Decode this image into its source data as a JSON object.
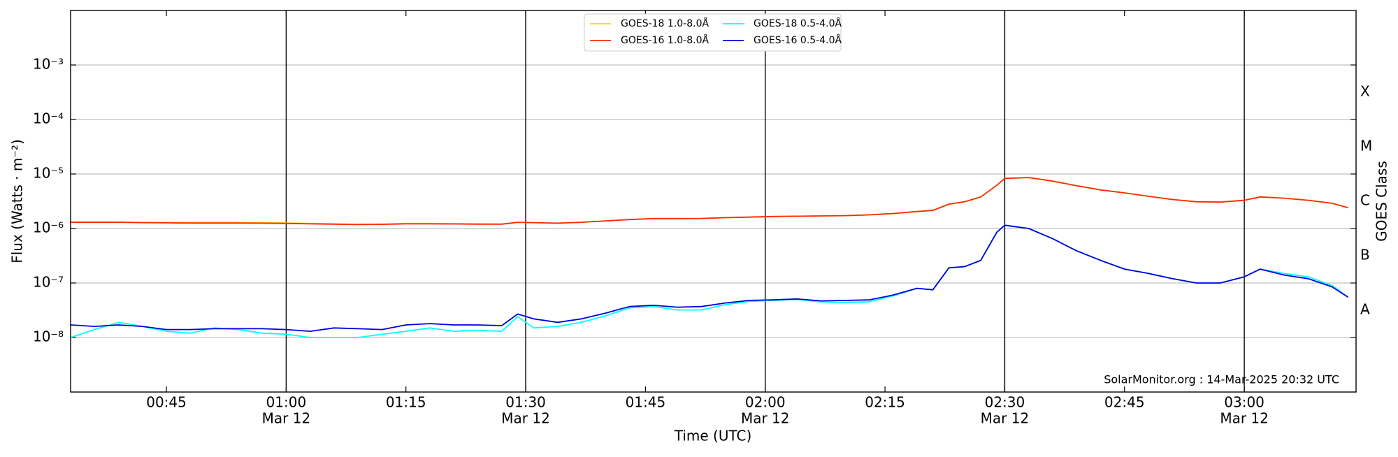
{
  "chart_data": {
    "type": "line",
    "xlabel": "Time (UTC)",
    "ylabel": "Flux (Watts · m⁻²)",
    "y2label": "GOES Class",
    "annotation": "SolarMonitor.org : 14-Mar-2025 20:32 UTC",
    "yscale": "log",
    "ylim": [
      1e-09,
      0.01
    ],
    "yticks": [
      {
        "value": 1e-08,
        "label": "10⁻⁸"
      },
      {
        "value": 1e-07,
        "label": "10⁻⁷"
      },
      {
        "value": 1e-06,
        "label": "10⁻⁶"
      },
      {
        "value": 1e-05,
        "label": "10⁻⁵"
      },
      {
        "value": 0.0001,
        "label": "10⁻⁴"
      },
      {
        "value": 0.001,
        "label": "10⁻³"
      }
    ],
    "y2lim": [
      1e-09,
      0.01
    ],
    "y2ticks": [
      {
        "value": 3.162e-08,
        "label": "A"
      },
      {
        "value": 3.162e-07,
        "label": "B"
      },
      {
        "value": 3.162e-06,
        "label": "C"
      },
      {
        "value": 3.162e-05,
        "label": "M"
      },
      {
        "value": 0.0003162,
        "label": "X"
      }
    ],
    "xlim": [
      "00:33",
      "03:14"
    ],
    "xticks": [
      {
        "value": "00:45",
        "label": [
          "00:45"
        ]
      },
      {
        "value": "01:00",
        "label": [
          "01:00",
          "Mar 12"
        ],
        "major": true
      },
      {
        "value": "01:15",
        "label": [
          "01:15"
        ]
      },
      {
        "value": "01:30",
        "label": [
          "01:30",
          "Mar 12"
        ],
        "major": true
      },
      {
        "value": "01:45",
        "label": [
          "01:45"
        ]
      },
      {
        "value": "02:00",
        "label": [
          "02:00",
          "Mar 12"
        ],
        "major": true
      },
      {
        "value": "02:15",
        "label": [
          "02:15"
        ]
      },
      {
        "value": "02:30",
        "label": [
          "02:30",
          "Mar 12"
        ],
        "major": true
      },
      {
        "value": "02:45",
        "label": [
          "02:45"
        ]
      },
      {
        "value": "03:00",
        "label": [
          "03:00",
          "Mar 12"
        ],
        "major": true
      }
    ],
    "grid": true,
    "legend": "upper center",
    "x": [
      "00:33",
      "00:36",
      "00:39",
      "00:42",
      "00:45",
      "00:48",
      "00:51",
      "00:54",
      "00:57",
      "01:00",
      "01:03",
      "01:06",
      "01:09",
      "01:12",
      "01:15",
      "01:18",
      "01:21",
      "01:24",
      "01:27",
      "01:29",
      "01:31",
      "01:34",
      "01:37",
      "01:40",
      "01:43",
      "01:46",
      "01:49",
      "01:52",
      "01:55",
      "01:58",
      "02:01",
      "02:04",
      "02:07",
      "02:10",
      "02:13",
      "02:16",
      "02:19",
      "02:21",
      "02:23",
      "02:25",
      "02:27",
      "02:29",
      "02:30",
      "02:33",
      "02:36",
      "02:39",
      "02:42",
      "02:45",
      "02:48",
      "02:51",
      "02:54",
      "02:57",
      "03:00",
      "03:02",
      "03:05",
      "03:08",
      "03:11",
      "03:13"
    ],
    "series": [
      {
        "name": "GOES-18 1.0-8.0Å",
        "color": "#ffd700",
        "values": [
          1.32e-06,
          1.32e-06,
          1.32e-06,
          1.3e-06,
          1.29e-06,
          1.28e-06,
          1.28e-06,
          1.28e-06,
          1.27e-06,
          1.26e-06,
          1.24e-06,
          1.22e-06,
          1.2e-06,
          1.21e-06,
          1.24e-06,
          1.24e-06,
          1.23e-06,
          1.22e-06,
          1.21e-06,
          1.3e-06,
          1.28e-06,
          1.25e-06,
          1.3e-06,
          1.38e-06,
          1.46e-06,
          1.52e-06,
          1.52e-06,
          1.53e-06,
          1.58e-06,
          1.62e-06,
          1.66e-06,
          1.68e-06,
          1.7e-06,
          1.72e-06,
          1.78e-06,
          1.88e-06,
          2.05e-06,
          2.15e-06,
          2.8e-06,
          3.1e-06,
          3.8e-06,
          6.2e-06,
          8.3e-06,
          8.6e-06,
          7.4e-06,
          6.1e-06,
          5.1e-06,
          4.5e-06,
          3.9e-06,
          3.4e-06,
          3.1e-06,
          3.05e-06,
          3.3e-06,
          3.8e-06,
          3.6e-06,
          3.3e-06,
          2.9e-06,
          2.4e-06
        ]
      },
      {
        "name": "GOES-16 1.0-8.0Å",
        "color": "#ff2a00",
        "values": [
          1.3e-06,
          1.3e-06,
          1.3e-06,
          1.28e-06,
          1.27e-06,
          1.26e-06,
          1.26e-06,
          1.26e-06,
          1.25e-06,
          1.24e-06,
          1.22e-06,
          1.2e-06,
          1.18e-06,
          1.19e-06,
          1.22e-06,
          1.22e-06,
          1.21e-06,
          1.2e-06,
          1.2e-06,
          1.3e-06,
          1.28e-06,
          1.25e-06,
          1.3e-06,
          1.38e-06,
          1.46e-06,
          1.52e-06,
          1.52e-06,
          1.53e-06,
          1.58e-06,
          1.62e-06,
          1.66e-06,
          1.68e-06,
          1.7e-06,
          1.72e-06,
          1.78e-06,
          1.88e-06,
          2.05e-06,
          2.15e-06,
          2.8e-06,
          3.1e-06,
          3.8e-06,
          6.2e-06,
          8.3e-06,
          8.6e-06,
          7.4e-06,
          6.1e-06,
          5.1e-06,
          4.5e-06,
          3.9e-06,
          3.4e-06,
          3.1e-06,
          3.05e-06,
          3.3e-06,
          3.8e-06,
          3.6e-06,
          3.3e-06,
          2.9e-06,
          2.4e-06
        ]
      },
      {
        "name": "GOES-18 0.5-4.0Å",
        "color": "#00ffff",
        "values": [
          1e-08,
          1.4e-08,
          1.9e-08,
          1.6e-08,
          1.3e-08,
          1.2e-08,
          1.5e-08,
          1.4e-08,
          1.2e-08,
          1.15e-08,
          1e-08,
          1e-08,
          1e-08,
          1.15e-08,
          1.3e-08,
          1.5e-08,
          1.3e-08,
          1.35e-08,
          1.3e-08,
          2.4e-08,
          1.5e-08,
          1.6e-08,
          1.9e-08,
          2.5e-08,
          3.5e-08,
          3.7e-08,
          3.2e-08,
          3.2e-08,
          4e-08,
          4.6e-08,
          4.8e-08,
          5e-08,
          4.5e-08,
          4.4e-08,
          4.5e-08,
          5.8e-08,
          8e-08,
          7.5e-08,
          1.9e-07,
          2e-07,
          2.6e-07,
          8.5e-07,
          1.15e-06,
          1e-06,
          6.5e-07,
          3.9e-07,
          2.6e-07,
          1.8e-07,
          1.5e-07,
          1.2e-07,
          1e-07,
          1e-07,
          1.3e-07,
          1.8e-07,
          1.5e-07,
          1.3e-07,
          9e-08,
          5.5e-08
        ]
      },
      {
        "name": "GOES-16 0.5-4.0Å",
        "color": "#0000e0",
        "values": [
          1.7e-08,
          1.6e-08,
          1.7e-08,
          1.6e-08,
          1.4e-08,
          1.4e-08,
          1.45e-08,
          1.45e-08,
          1.45e-08,
          1.4e-08,
          1.3e-08,
          1.5e-08,
          1.45e-08,
          1.4e-08,
          1.7e-08,
          1.8e-08,
          1.7e-08,
          1.7e-08,
          1.65e-08,
          2.7e-08,
          2.2e-08,
          1.9e-08,
          2.2e-08,
          2.8e-08,
          3.7e-08,
          3.9e-08,
          3.6e-08,
          3.7e-08,
          4.3e-08,
          4.8e-08,
          4.9e-08,
          5.1e-08,
          4.7e-08,
          4.8e-08,
          4.9e-08,
          6e-08,
          8e-08,
          7.5e-08,
          1.9e-07,
          2e-07,
          2.6e-07,
          8.5e-07,
          1.15e-06,
          1e-06,
          6.5e-07,
          3.9e-07,
          2.6e-07,
          1.8e-07,
          1.5e-07,
          1.2e-07,
          1e-07,
          1e-07,
          1.3e-07,
          1.8e-07,
          1.4e-07,
          1.2e-07,
          8.5e-08,
          5.5e-08
        ]
      }
    ]
  }
}
